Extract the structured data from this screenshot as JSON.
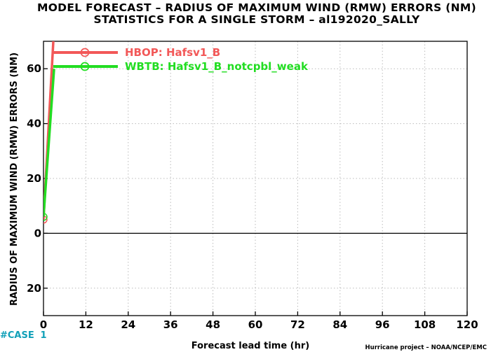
{
  "chart_data": {
    "type": "line",
    "title": "MODEL FORECAST – RADIUS OF MAXIMUM WIND (RMW) ERRORS (NM)",
    "subtitle": "STATISTICS FOR A SINGLE STORM – al192020_SALLY",
    "xlabel": "Forecast lead time (hr)",
    "ylabel": "RADIUS OF MAXIMUM WIND (RMW) ERRORS (NM)",
    "xlim": [
      0,
      120
    ],
    "ylim": [
      -30,
      70
    ],
    "xticks": [
      0,
      12,
      24,
      36,
      48,
      60,
      72,
      84,
      96,
      108,
      120
    ],
    "yticks": [
      -20,
      0,
      20,
      40,
      60
    ],
    "ytick_labels": [
      "20",
      "0",
      "20",
      "40",
      "60"
    ],
    "grid": true,
    "legend_position": "top-left",
    "x": [
      0,
      3
    ],
    "series": [
      {
        "name": "HBOP: Hafsv1_B",
        "color": "#f25858",
        "values": [
          5,
          75
        ]
      },
      {
        "name": "WBTB: Hafsv1_B_notcpbl_weak",
        "color": "#22dd22",
        "values": [
          6,
          60
        ]
      }
    ],
    "case_label": "#CASE",
    "case_counts": [
      "1"
    ],
    "credit": "Hurricane project – NOAA/NCEP/EMC"
  }
}
